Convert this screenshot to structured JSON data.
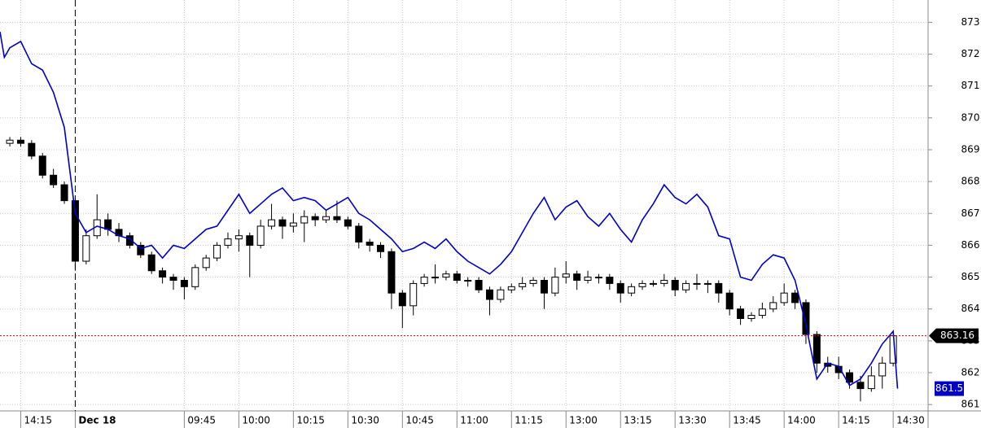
{
  "chart_data": {
    "type": "candlestick",
    "xlim": [
      -1.9,
      83.2
    ],
    "ylim": [
      860.8,
      873.7
    ],
    "yticks": [
      861,
      862,
      863,
      864,
      865,
      866,
      867,
      868,
      869,
      870,
      871,
      872,
      873
    ],
    "xticks": [
      {
        "value": 0,
        "label": "14:15"
      },
      {
        "value": 5,
        "label": "Dec 18"
      },
      {
        "value": 15,
        "label": "09:45"
      },
      {
        "value": 20,
        "label": "10:00"
      },
      {
        "value": 25,
        "label": "10:15"
      },
      {
        "value": 30,
        "label": "10:30"
      },
      {
        "value": 35,
        "label": "10:45"
      },
      {
        "value": 40,
        "label": "11:00"
      },
      {
        "value": 45,
        "label": "11:15"
      },
      {
        "value": 50,
        "label": "13:00"
      },
      {
        "value": 55,
        "label": "13:15"
      },
      {
        "value": 60,
        "label": "13:30"
      },
      {
        "value": 65,
        "label": "13:45"
      },
      {
        "value": 70,
        "label": "14:00"
      },
      {
        "value": 75,
        "label": "14:15"
      },
      {
        "value": 80,
        "label": "14:30"
      }
    ],
    "grid": true,
    "last_price_color": "#cc0000",
    "series": [
      {
        "type": "candlestick",
        "up_color": "#ffffff",
        "down_color": "#000000",
        "x": [
          -1,
          0,
          1,
          2,
          3,
          4,
          5,
          6,
          7,
          8,
          9,
          10,
          11,
          12,
          13,
          14,
          15,
          16,
          17,
          18,
          19,
          20,
          21,
          22,
          23,
          24,
          25,
          26,
          27,
          28,
          29,
          30,
          31,
          32,
          33,
          34,
          35,
          36,
          37,
          38,
          39,
          40,
          41,
          42,
          43,
          44,
          45,
          46,
          47,
          48,
          49,
          50,
          51,
          52,
          53,
          54,
          55,
          56,
          57,
          58,
          59,
          60,
          61,
          62,
          63,
          64,
          65,
          66,
          67,
          68,
          69,
          70,
          71,
          72,
          73,
          74,
          75,
          76,
          77,
          78,
          79,
          80
        ],
        "open": [
          869.2,
          869.3,
          869.2,
          868.8,
          868.2,
          867.9,
          867.4,
          865.5,
          866.3,
          866.8,
          866.5,
          866.3,
          866.0,
          865.7,
          865.2,
          865.0,
          864.9,
          864.7,
          865.3,
          865.6,
          866.0,
          866.2,
          866.3,
          866.0,
          866.6,
          866.8,
          866.6,
          866.7,
          866.9,
          866.8,
          866.9,
          866.8,
          866.6,
          866.1,
          866.0,
          865.8,
          864.5,
          864.1,
          864.8,
          865.0,
          865.0,
          865.1,
          864.9,
          864.9,
          864.6,
          864.3,
          864.6,
          864.7,
          864.8,
          864.9,
          864.5,
          865.0,
          865.1,
          864.9,
          865.0,
          865.0,
          864.8,
          864.5,
          864.7,
          864.8,
          864.8,
          864.9,
          864.6,
          864.8,
          864.8,
          864.8,
          864.5,
          864.0,
          863.7,
          863.8,
          864.0,
          864.2,
          864.5,
          864.2,
          863.2,
          862.3,
          862.2,
          862.0,
          861.7,
          861.5,
          861.9,
          862.3
        ],
        "high": [
          869.4,
          869.4,
          869.3,
          868.9,
          868.4,
          868.0,
          867.5,
          866.5,
          867.6,
          867.0,
          866.7,
          866.4,
          866.1,
          865.8,
          865.3,
          865.1,
          865.0,
          865.4,
          865.7,
          866.1,
          866.4,
          866.5,
          866.4,
          866.8,
          867.3,
          866.9,
          867.0,
          867.1,
          867.0,
          867.1,
          867.4,
          866.9,
          866.7,
          866.2,
          866.1,
          865.9,
          864.6,
          864.9,
          865.1,
          865.4,
          865.2,
          865.2,
          865.0,
          865.0,
          864.7,
          864.7,
          864.8,
          865.0,
          865.0,
          865.0,
          865.3,
          865.5,
          865.2,
          865.2,
          865.1,
          865.1,
          864.9,
          864.8,
          864.9,
          864.9,
          865.1,
          865.0,
          864.9,
          865.1,
          864.9,
          864.9,
          864.6,
          864.1,
          863.9,
          864.2,
          864.4,
          864.8,
          864.6,
          864.3,
          863.3,
          862.5,
          862.5,
          862.1,
          861.9,
          862.2,
          862.5,
          863.2
        ],
        "low": [
          869.1,
          869.1,
          868.7,
          868.1,
          867.8,
          867.3,
          865.2,
          865.4,
          866.2,
          866.3,
          866.1,
          865.9,
          865.6,
          865.1,
          864.8,
          864.6,
          864.3,
          864.6,
          865.2,
          865.5,
          865.9,
          865.8,
          865.0,
          865.9,
          866.5,
          866.2,
          866.4,
          866.1,
          866.6,
          866.7,
          866.7,
          866.5,
          865.9,
          865.8,
          865.6,
          864.0,
          863.4,
          863.8,
          864.7,
          864.8,
          864.9,
          864.8,
          864.7,
          864.5,
          863.8,
          864.2,
          864.5,
          864.6,
          864.7,
          864.0,
          864.4,
          864.8,
          864.6,
          864.8,
          864.8,
          864.6,
          864.2,
          864.4,
          864.6,
          864.7,
          864.7,
          864.4,
          864.5,
          864.6,
          864.5,
          864.2,
          863.8,
          863.5,
          863.6,
          863.7,
          863.9,
          864.1,
          864.0,
          862.9,
          862.0,
          862.0,
          861.8,
          861.5,
          861.1,
          861.4,
          861.5,
          862.2
        ],
        "close": [
          869.3,
          869.2,
          868.8,
          868.2,
          867.9,
          867.4,
          865.5,
          866.3,
          866.8,
          866.5,
          866.3,
          866.0,
          865.7,
          865.2,
          865.0,
          864.9,
          864.7,
          865.3,
          865.6,
          866.0,
          866.2,
          866.3,
          866.0,
          866.6,
          866.8,
          866.6,
          866.7,
          866.9,
          866.8,
          866.9,
          866.8,
          866.6,
          866.1,
          866.0,
          865.8,
          864.5,
          864.1,
          864.8,
          865.0,
          865.0,
          865.1,
          864.9,
          864.9,
          864.6,
          864.3,
          864.6,
          864.7,
          864.8,
          864.9,
          864.5,
          865.0,
          865.1,
          864.9,
          865.0,
          865.0,
          864.8,
          864.5,
          864.7,
          864.8,
          864.8,
          864.9,
          864.6,
          864.8,
          864.8,
          864.8,
          864.5,
          864.0,
          863.7,
          863.8,
          864.0,
          864.2,
          864.5,
          864.2,
          863.2,
          862.3,
          862.2,
          862.0,
          861.7,
          861.5,
          861.9,
          862.3,
          863.16
        ]
      },
      {
        "type": "line",
        "color": "#0000cc",
        "x": [
          -1.9,
          -1.5,
          -1,
          0,
          1,
          2,
          3,
          4,
          5,
          6,
          7,
          8,
          9,
          10,
          11,
          12,
          13,
          14,
          15,
          16,
          17,
          18,
          19,
          20,
          21,
          22,
          23,
          24,
          25,
          26,
          27,
          28,
          29,
          30,
          31,
          32,
          33,
          34,
          35,
          36,
          37,
          38,
          39,
          40,
          41,
          42,
          43,
          44,
          45,
          46,
          47,
          48,
          49,
          50,
          51,
          52,
          53,
          54,
          55,
          56,
          57,
          58,
          59,
          60,
          61,
          62,
          63,
          64,
          65,
          66,
          67,
          68,
          69,
          70,
          71,
          72,
          73,
          74,
          75,
          76,
          77,
          78,
          79,
          80,
          80.4
        ],
        "values": [
          872.7,
          871.9,
          872.2,
          872.4,
          871.7,
          871.5,
          870.8,
          869.7,
          867.0,
          866.4,
          866.6,
          866.5,
          866.3,
          866.2,
          865.9,
          866.0,
          865.6,
          866.0,
          865.9,
          866.2,
          866.5,
          866.6,
          867.1,
          867.6,
          867.0,
          867.3,
          867.6,
          867.8,
          867.4,
          867.5,
          867.4,
          867.1,
          867.3,
          867.5,
          867.0,
          866.8,
          866.5,
          866.2,
          865.8,
          865.9,
          866.1,
          865.9,
          866.2,
          865.8,
          865.5,
          865.3,
          865.1,
          865.4,
          865.8,
          866.4,
          867.0,
          867.5,
          866.8,
          867.2,
          867.4,
          866.9,
          866.6,
          867.0,
          866.5,
          866.1,
          866.8,
          867.3,
          867.9,
          867.5,
          867.3,
          867.6,
          867.2,
          866.3,
          866.2,
          865.0,
          864.9,
          865.4,
          865.7,
          865.6,
          864.9,
          863.5,
          861.8,
          862.3,
          862.2,
          861.6,
          861.8,
          862.3,
          862.9,
          863.3,
          861.5
        ]
      }
    ]
  }
}
